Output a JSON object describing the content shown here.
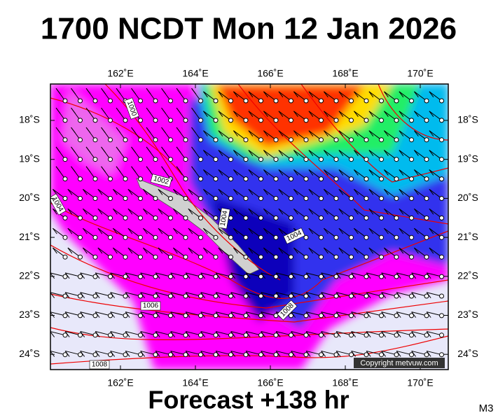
{
  "title": "1700 NCDT Mon 12 Jan 2026",
  "map": {
    "x_labels": [
      "162˚E",
      "164˚E",
      "166˚E",
      "168˚E",
      "170˚E"
    ],
    "y_labels": [
      "18˚S",
      "19˚S",
      "20˚S",
      "21˚S",
      "22˚S",
      "23˚S",
      "24˚S"
    ],
    "isobar_labels": [
      "1000",
      "1002",
      "1004",
      "1004",
      "1004",
      "1006",
      "1008",
      "1008"
    ],
    "copyright": "Copyright metvuw.com"
  },
  "footer": {
    "forecast": "Forecast +138 hr",
    "code": "M3"
  }
}
